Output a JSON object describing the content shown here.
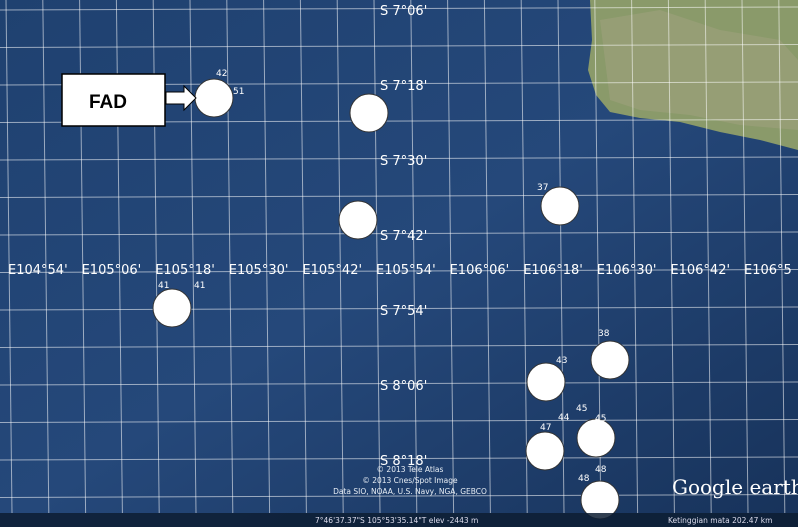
{
  "map": {
    "lat_labels": [
      "S 7°06'",
      "S 7°18'",
      "S 7°30'",
      "S 7°42'",
      "S 7°54'",
      "S 8°06'",
      "S 8°18'"
    ],
    "lon_labels": [
      "E104°54'",
      "E105°06'",
      "E105°18'",
      "E105°30'",
      "E105°42'",
      "E105°54'",
      "E106°06'",
      "E106°18'",
      "E106°30'",
      "E106°42'",
      "E106°5"
    ],
    "fad_label": "FAD",
    "point_labels": [
      "42",
      "51",
      "37",
      "41",
      "41",
      "38",
      "43",
      "45",
      "44",
      "45",
      "47",
      "48",
      "48"
    ],
    "credits": [
      "© 2013 Tele Atlas",
      "© 2013 Cnes/Spot Image",
      "Data SIO, NOAA, U.S. Navy, NGA, GEBCO"
    ],
    "logo": "Google earth",
    "status_left": "7°46'37.37\"S 105°53'35.14\"T elev -2443 m",
    "status_right": "Ketinggian mata 202.47 km"
  }
}
